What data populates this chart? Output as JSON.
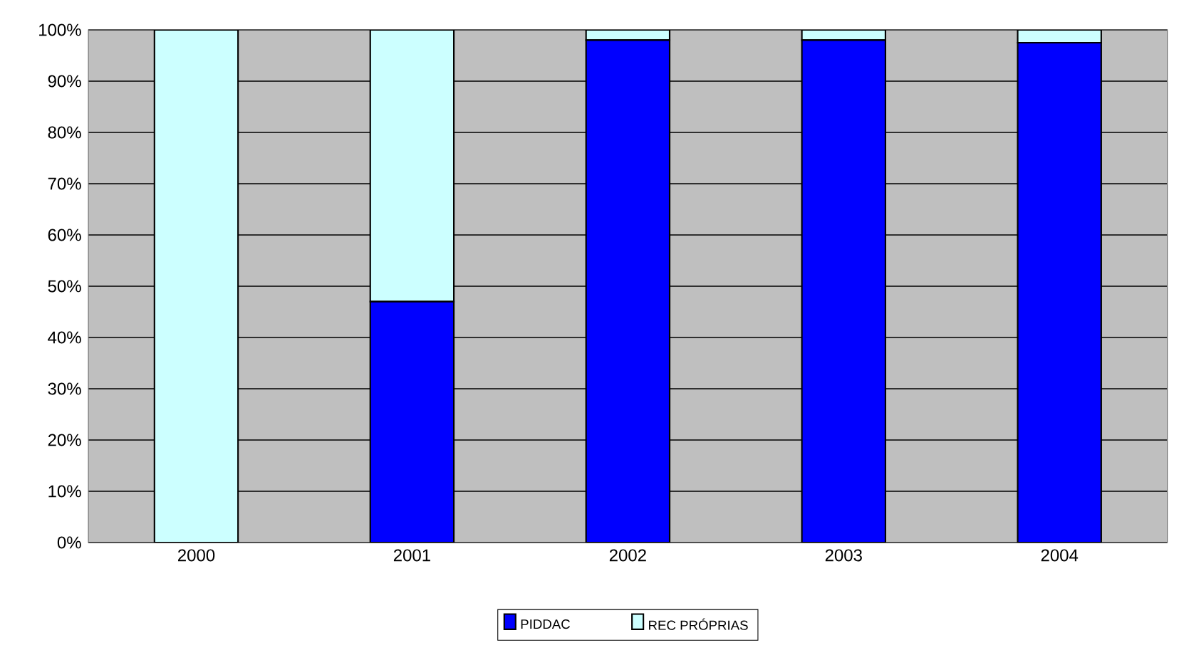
{
  "chart_data": {
    "type": "bar",
    "stacked": true,
    "categories": [
      "2000",
      "2001",
      "2002",
      "2003",
      "2004"
    ],
    "series": [
      {
        "name": "PIDDAC",
        "color": "#0000ff",
        "values": [
          0,
          47,
          98,
          98,
          97.5
        ]
      },
      {
        "name": "REC PRÓPRIAS",
        "color": "#ccffff",
        "values": [
          100,
          53,
          2,
          2,
          2.5
        ]
      }
    ],
    "ylim": [
      0,
      100
    ],
    "yticks": [
      {
        "value": 0,
        "label": "0%"
      },
      {
        "value": 10,
        "label": "10%"
      },
      {
        "value": 20,
        "label": "20%"
      },
      {
        "value": 30,
        "label": "30%"
      },
      {
        "value": 40,
        "label": "40%"
      },
      {
        "value": 50,
        "label": "50%"
      },
      {
        "value": 60,
        "label": "60%"
      },
      {
        "value": 70,
        "label": "70%"
      },
      {
        "value": 80,
        "label": "80%"
      },
      {
        "value": 90,
        "label": "90%"
      },
      {
        "value": 100,
        "label": "100%"
      }
    ],
    "grid": "y",
    "legend": "bottom"
  }
}
